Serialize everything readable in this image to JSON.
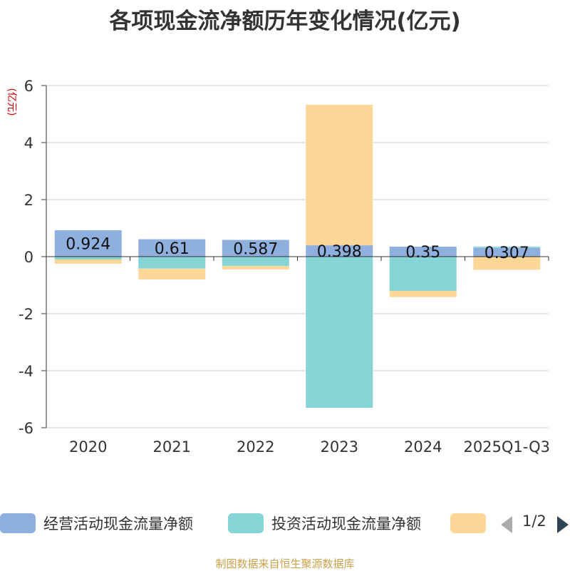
{
  "chart_data": {
    "type": "bar",
    "stacked": true,
    "title": "各项现金流净额历年变化情况(亿元)",
    "ylabel": "(亿元)",
    "ylim": [
      -6,
      6
    ],
    "yticks": [
      6,
      4,
      2,
      0,
      -2,
      -4,
      -6
    ],
    "categories": [
      "2020",
      "2021",
      "2022",
      "2023",
      "2024",
      "2025Q1-Q3"
    ],
    "series": [
      {
        "name": "经营活动现金流量净额",
        "color": "#8fb0de",
        "values": [
          0.924,
          0.61,
          0.587,
          0.398,
          0.35,
          0.307
        ]
      },
      {
        "name": "投资活动现金流量净额",
        "color": "#85d4d6",
        "values": [
          -0.1,
          -0.42,
          -0.33,
          -5.3,
          -1.2,
          0.04
        ]
      },
      {
        "name": "",
        "color": "#fdd797",
        "values": [
          -0.15,
          -0.38,
          -0.12,
          4.93,
          -0.22,
          -0.46
        ]
      }
    ],
    "data_labels": [
      "0.924",
      "0.61",
      "0.587",
      "0.398",
      "0.35",
      "0.307"
    ]
  },
  "legend": {
    "page_indicator": "1/2"
  },
  "source_note": "制图数据来自恒生聚源数据库"
}
